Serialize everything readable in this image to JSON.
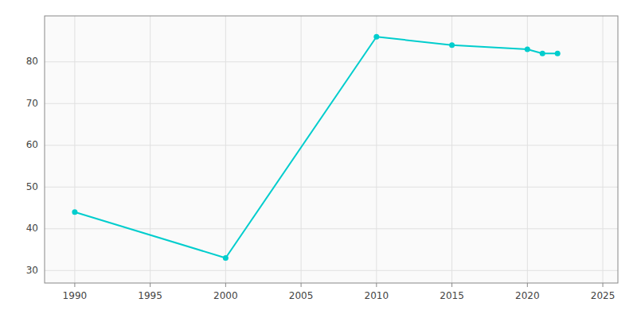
{
  "chart_data": {
    "type": "line",
    "x": [
      1990,
      2000,
      2010,
      2015,
      2020,
      2021,
      2022
    ],
    "values": [
      44,
      33,
      86,
      84,
      83,
      82,
      82
    ],
    "color": "#00CDCD",
    "marker": "circle",
    "xlim": [
      1988,
      2026
    ],
    "ylim": [
      27,
      91
    ],
    "xticks": [
      1990,
      1995,
      2000,
      2005,
      2010,
      2015,
      2020,
      2025
    ],
    "yticks": [
      30,
      40,
      50,
      60,
      70,
      80
    ],
    "grid": true
  }
}
